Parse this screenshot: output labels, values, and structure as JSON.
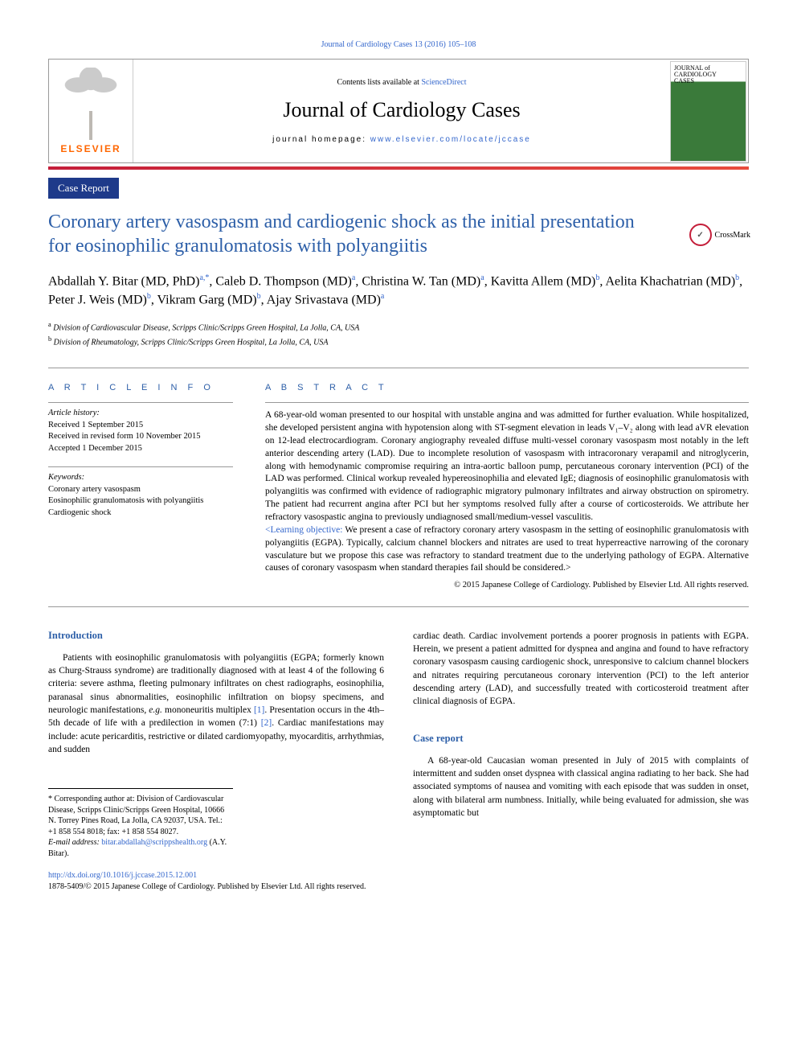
{
  "journal_ref": "Journal of Cardiology Cases 13 (2016) 105–108",
  "header": {
    "contents_prefix": "Contents lists available at ",
    "contents_link": "ScienceDirect",
    "journal_name": "Journal of Cardiology Cases",
    "homepage_prefix": "journal homepage: ",
    "homepage_url": "www.elsevier.com/locate/jccase",
    "elsevier_label": "ELSEVIER",
    "cover_title_1": "JOURNAL of",
    "cover_title_2": "CARDIOLOGY",
    "cover_title_3": "CASES"
  },
  "section_label": "Case Report",
  "crossmark_label": "CrossMark",
  "title": "Coronary artery vasospasm and cardiogenic shock as the initial presentation for eosinophilic granulomatosis with polyangiitis",
  "authors_html": "Abdallah Y. Bitar  (MD, PhD)<sup class='aff'>a,</sup><sup class='aff'>*</sup>, Caleb D. Thompson (MD)<sup class='aff'>a</sup>, Christina W. Tan (MD)<sup class='aff'>a</sup>, Kavitta Allem (MD)<sup class='aff'>b</sup>, Aelita Khachatrian (MD)<sup class='aff'>b</sup>, Peter J. Weis (MD)<sup class='aff'>b</sup>, Vikram Garg (MD)<sup class='aff'>b</sup>, Ajay Srivastava (MD)<sup class='aff'>a</sup>",
  "affiliations": {
    "a": "Division of Cardiovascular Disease, Scripps Clinic/Scripps Green Hospital, La Jolla, CA, USA",
    "b": "Division of Rheumatology, Scripps Clinic/Scripps Green Hospital, La Jolla, CA, USA"
  },
  "article_info": {
    "heading": "A R T I C L E   I N F O",
    "history_label": "Article history:",
    "received": "Received 1 September 2015",
    "revised": "Received in revised form 10 November 2015",
    "accepted": "Accepted 1 December 2015",
    "keywords_label": "Keywords:",
    "keywords": [
      "Coronary artery vasospasm",
      "Eosinophilic granulomatosis with polyangiitis",
      "Cardiogenic shock"
    ]
  },
  "abstract": {
    "heading": "A B S T R A C T",
    "text": "A 68-year-old woman presented to our hospital with unstable angina and was admitted for further evaluation. While hospitalized, she developed persistent angina with hypotension along with ST-segment elevation in leads V₁–V₂ along with lead aVR elevation on 12-lead electrocardiogram. Coronary angiography revealed diffuse multi-vessel coronary vasospasm most notably in the left anterior descending artery (LAD). Due to incomplete resolution of vasospasm with intracoronary verapamil and nitroglycerin, along with hemodynamic compromise requiring an intra-aortic balloon pump, percutaneous coronary intervention (PCI) of the LAD was performed. Clinical workup revealed hypereosinophilia and elevated IgE; diagnosis of eosinophilic granulomatosis with polyangiitis was confirmed with evidence of radiographic migratory pulmonary infiltrates and airway obstruction on spirometry. The patient had recurrent angina after PCI but her symptoms resolved fully after a course of corticosteroids. We attribute her refractory vasospastic angina to previously undiagnosed small/medium-vessel vasculitis.",
    "learning_label": "<Learning objective:",
    "learning_text": " We present a case of refractory coronary artery vasospasm in the setting of eosinophilic granulomatosis with polyangiitis (EGPA). Typically, calcium channel blockers and nitrates are used to treat hyperreactive narrowing of the coronary vasculature but we propose this case was refractory to standard treatment due to the underlying pathology of EGPA. Alternative causes of coronary vasospasm when standard therapies fail should be considered.>",
    "copyright": "© 2015 Japanese College of Cardiology. Published by Elsevier Ltd. All rights reserved."
  },
  "body": {
    "intro_heading": "Introduction",
    "intro_text_html": "Patients with eosinophilic granulomatosis with polyangiitis (EGPA; formerly known as Churg-Strauss syndrome) are traditionally diagnosed with at least 4 of the following 6 criteria: severe asthma, fleeting pulmonary infiltrates on chest radiographs, eosinophilia, paranasal sinus abnormalities, eosinophilic infiltration on biopsy specimens, and neurologic manifestations, <i>e.g.</i> mononeuritis multiplex <span class='ref'>[1]</span>. Presentation occurs in the 4th–5th decade of life with a predilection in women (7:1) <span class='ref'>[2]</span>. Cardiac manifestations may include: acute pericarditis, restrictive or dilated cardiomyopathy, myocarditis, arrhythmias, and sudden",
    "col2_top": "cardiac death. Cardiac involvement portends a poorer prognosis in patients with EGPA. Herein, we present a patient admitted for dyspnea and angina and found to have refractory coronary vasospasm causing cardiogenic shock, unresponsive to calcium channel blockers and nitrates requiring percutaneous coronary intervention (PCI) to the left anterior descending artery (LAD), and successfully treated with corticosteroid treatment after clinical diagnosis of EGPA.",
    "case_heading": "Case report",
    "case_text": "A 68-year-old Caucasian woman presented in July of 2015 with complaints of intermittent and sudden onset dyspnea with classical angina radiating to her back. She had associated symptoms of nausea and vomiting with each episode that was sudden in onset, along with bilateral arm numbness. Initially, while being evaluated for admission, she was asymptomatic but"
  },
  "footnote": {
    "corr": "* Corresponding author at: Division of Cardiovascular Disease, Scripps Clinic/Scripps Green Hospital, 10666 N. Torrey Pines Road, La Jolla, CA 92037, USA. Tel.: +1 858 554 8018; fax: +1 858 554 8027.",
    "email_label": "E-mail address: ",
    "email": "bitar.abdallah@scrippshealth.org",
    "email_suffix": " (A.Y. Bitar)."
  },
  "doi": {
    "url": "http://dx.doi.org/10.1016/j.jccase.2015.12.001",
    "issn_copyright": "1878-5409/© 2015 Japanese College of Cardiology. Published by Elsevier Ltd. All rights reserved."
  },
  "colors": {
    "link": "#3366cc",
    "title": "#2d5fa8",
    "navy": "#1e3a8a",
    "red_bar": "#c41e3a",
    "elsevier_orange": "#ff6600"
  }
}
